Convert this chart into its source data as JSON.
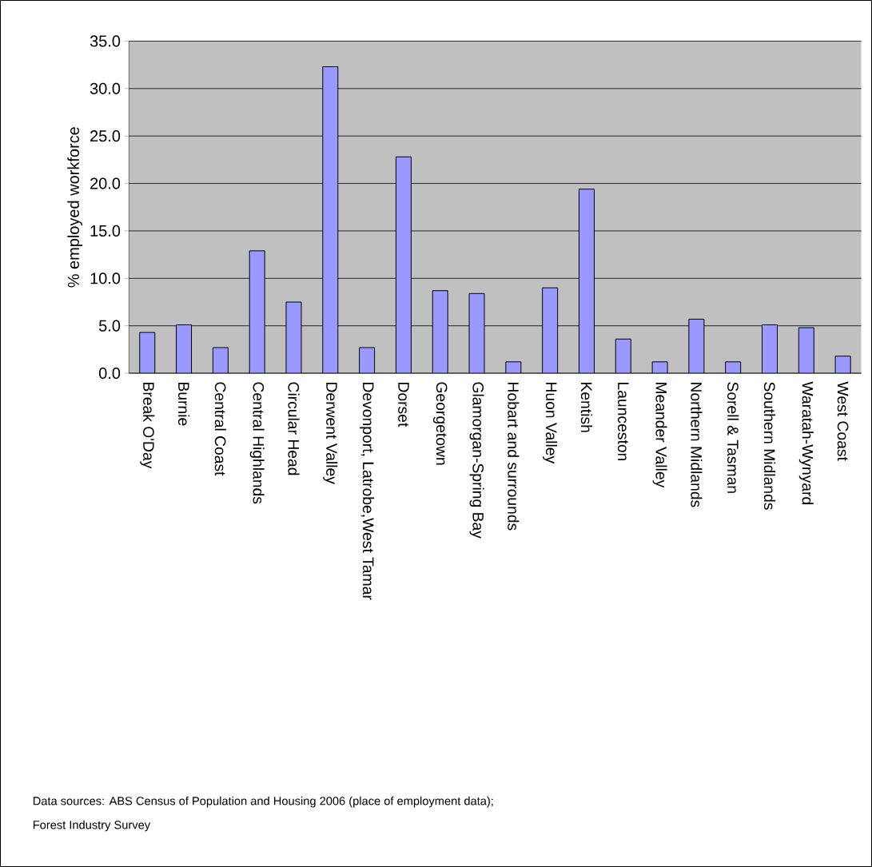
{
  "chart_data": {
    "type": "bar",
    "ylabel": "% employed workforce",
    "categories": [
      "Break O'Day",
      "Burnie",
      "Central Coast",
      "Central Highlands",
      "Circular Head",
      "Derwent Valley",
      "Devonport, Latrobe,West Tamar",
      "Dorset",
      "Georgetown",
      "Glamorgan-Spring Bay",
      "Hobart and surrounds",
      "Huon Valley",
      "Kentish",
      "Launceston",
      "Meander Valley",
      "Northern Midlands",
      "Sorell & Tasman",
      "Southern Midlands",
      "Waratah-Wynyard",
      "West Coast"
    ],
    "values": [
      4.3,
      5.1,
      2.7,
      12.9,
      7.5,
      32.3,
      2.7,
      22.8,
      8.7,
      8.4,
      1.2,
      9.0,
      19.4,
      3.6,
      1.2,
      5.7,
      1.2,
      5.1,
      4.8,
      1.8
    ],
    "color": "#9999ff",
    "ylim": [
      0,
      35
    ],
    "yticks": [
      {
        "value": 0,
        "label": "0.0"
      },
      {
        "value": 5,
        "label": "5.0"
      },
      {
        "value": 10,
        "label": "10.0"
      },
      {
        "value": 15,
        "label": "15.0"
      },
      {
        "value": 20,
        "label": "20.0"
      },
      {
        "value": 25,
        "label": "25.0"
      },
      {
        "value": 30,
        "label": "30.0"
      },
      {
        "value": 35,
        "label": "35.0"
      }
    ],
    "grid": "y",
    "annotations": [
      "Data sources: ABS Census of Population and Housing 2006 (place of employment data);",
      "Forest Industry Survey"
    ]
  }
}
